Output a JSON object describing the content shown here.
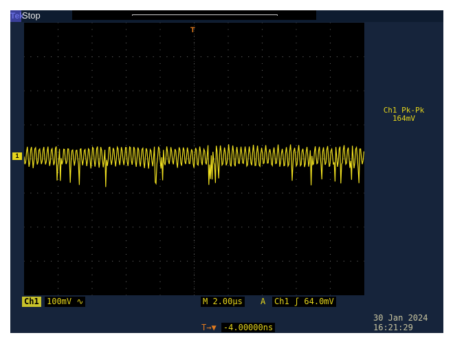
{
  "header": {
    "brand": "Tek",
    "status": "Stop"
  },
  "measurement": {
    "label": "Ch1 Pk-Pk",
    "value": "164mV"
  },
  "channel": {
    "marker": "1",
    "name": "Ch1",
    "scale": "100mV",
    "coupling_icon": "∿"
  },
  "timebase": {
    "label": "M 2.00µs"
  },
  "trigger": {
    "mode": "A",
    "source": "Ch1",
    "slope_icon": "ʃ",
    "level": "64.0mV",
    "marker": "T"
  },
  "trigger_offset": {
    "icon": "T→▼",
    "value": "-4.00000ns"
  },
  "datetime": {
    "date": "30 Jan  2024",
    "time": "16:21:29"
  },
  "colors": {
    "trace": "#f0e020",
    "trigger": "#e07a1e",
    "background": "#16243b"
  }
}
